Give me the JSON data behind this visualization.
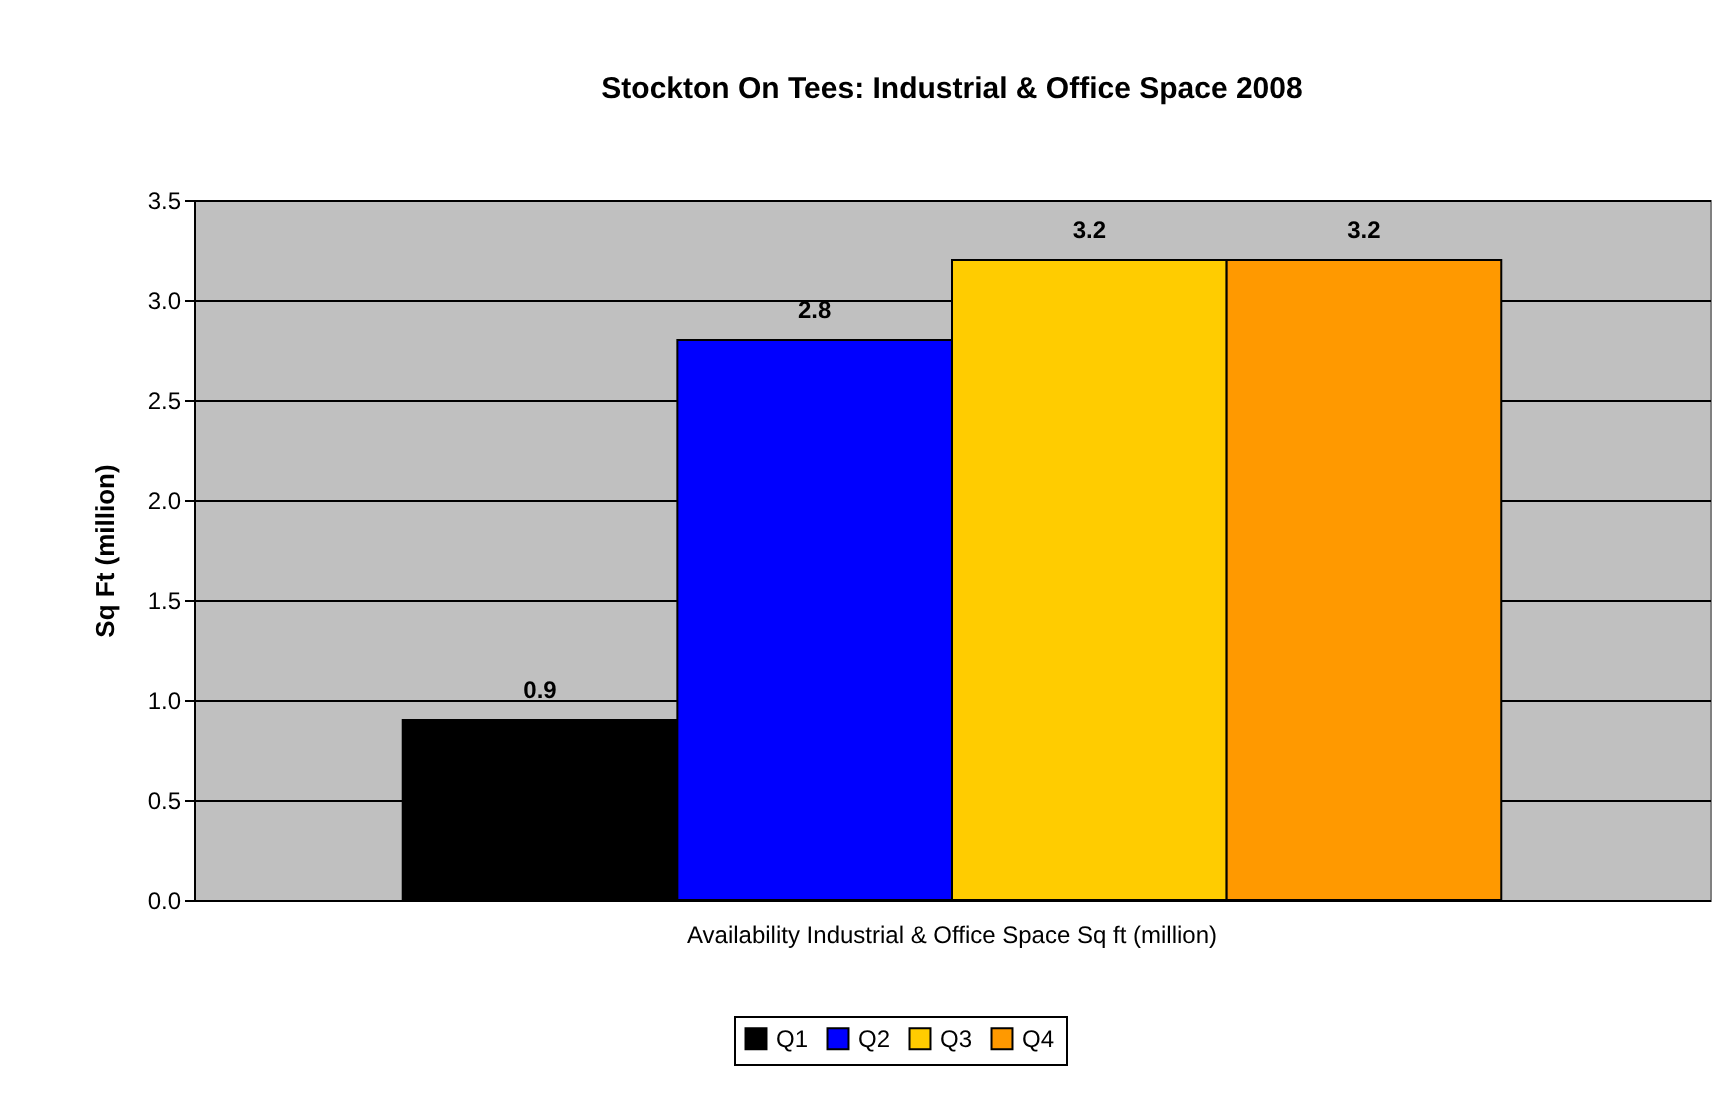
{
  "chart_data": {
    "type": "bar",
    "title": "Stockton On Tees: Industrial & Office Space 2008",
    "ylabel": "Sq Ft (million)",
    "categories": [
      "Availability Industrial & Office Space Sq ft (million)"
    ],
    "series": [
      {
        "name": "Q1",
        "color": "#000000",
        "values": [
          0.9
        ]
      },
      {
        "name": "Q2",
        "color": "#0000ff",
        "values": [
          2.8
        ]
      },
      {
        "name": "Q3",
        "color": "#ffcc00",
        "values": [
          3.2
        ]
      },
      {
        "name": "Q4",
        "color": "#ff9900",
        "values": [
          3.2
        ]
      }
    ],
    "ylim": [
      0,
      3.5
    ],
    "yticks": [
      {
        "value": 0,
        "label": "0.0"
      },
      0.5,
      {
        "value": 1,
        "label": "1.0"
      },
      1.5,
      {
        "value": 2,
        "label": "2.0"
      },
      2.5,
      {
        "value": 3,
        "label": "3.0"
      },
      3.5
    ],
    "grid": "y",
    "legend": "bottom",
    "data_labels": true
  }
}
